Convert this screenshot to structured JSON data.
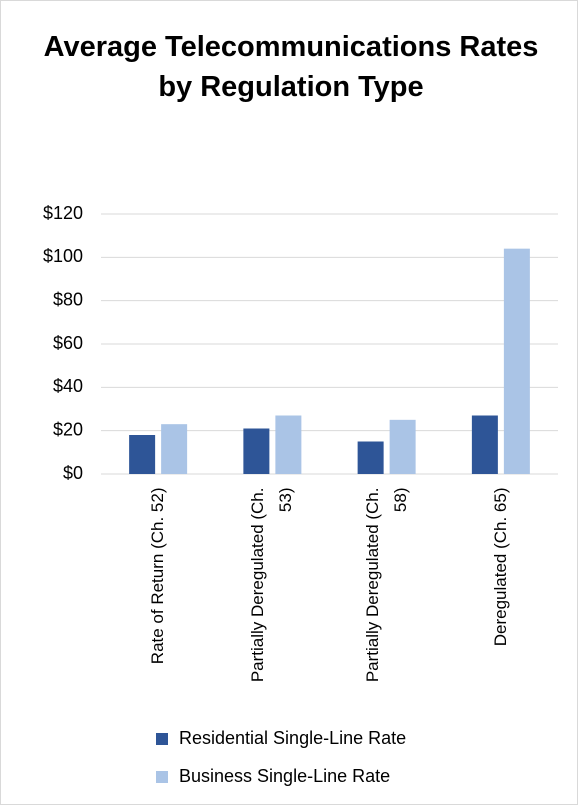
{
  "chart_data": {
    "type": "bar",
    "title": "Average Telecommunications Rates by Regulation Type",
    "categories": [
      "Rate of Return (Ch. 52)",
      "Partially Deregulated (Ch. 53)",
      "Partially Deregulated (Ch. 58)",
      "Deregulated (Ch. 65)"
    ],
    "series": [
      {
        "name": "Residential Single-Line Rate",
        "color": "#2e5597",
        "values": [
          18,
          21,
          15,
          27
        ]
      },
      {
        "name": "Business Single-Line Rate",
        "color": "#aac4e6",
        "values": [
          23,
          27,
          25,
          104
        ]
      }
    ],
    "ylim": [
      0,
      120
    ],
    "yticks": [
      {
        "value": 0,
        "label": "$0"
      },
      {
        "value": 20,
        "label": "$20"
      },
      {
        "value": 40,
        "label": "$40"
      },
      {
        "value": 60,
        "label": "$60"
      },
      {
        "value": 80,
        "label": "$80"
      },
      {
        "value": 100,
        "label": "$100"
      },
      {
        "value": 120,
        "label": "$120"
      }
    ],
    "grid": true,
    "legend": "bottom"
  }
}
